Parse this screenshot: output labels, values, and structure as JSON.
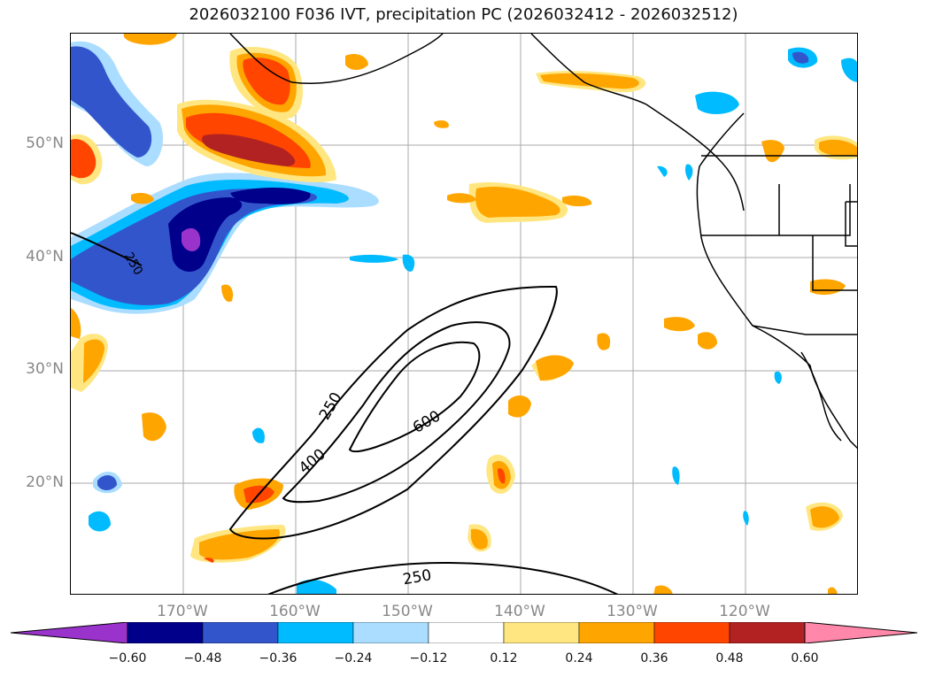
{
  "title": "2026032100 F036 IVT, precipitation PC (2026032412 - 2026032512)",
  "lat_labels": [
    "50°N",
    "40°N",
    "30°N",
    "20°N"
  ],
  "lon_labels": [
    "170°W",
    "160°W",
    "150°W",
    "140°W",
    "130°W",
    "120°W"
  ],
  "contour_labels": [
    "250",
    "400",
    "600",
    "250",
    "250"
  ],
  "colorbar": {
    "ticks": [
      "−0.60",
      "−0.48",
      "−0.36",
      "−0.24",
      "−0.12",
      "0.12",
      "0.24",
      "0.36",
      "0.48",
      "0.60"
    ],
    "colors": [
      "#9933cc",
      "#00008b",
      "#3355cc",
      "#00bbff",
      "#aaddff",
      "#ffffff",
      "#ffe680",
      "#ffa500",
      "#ff4500",
      "#b22222",
      "#ff88aa"
    ]
  },
  "map_extent": {
    "lon_min": -180,
    "lon_max": -110,
    "lat_min": 10,
    "lat_max": 60
  },
  "colors": {
    "gridline": "#aaaaaa",
    "contour": "#000000",
    "coast": "#000000"
  }
}
